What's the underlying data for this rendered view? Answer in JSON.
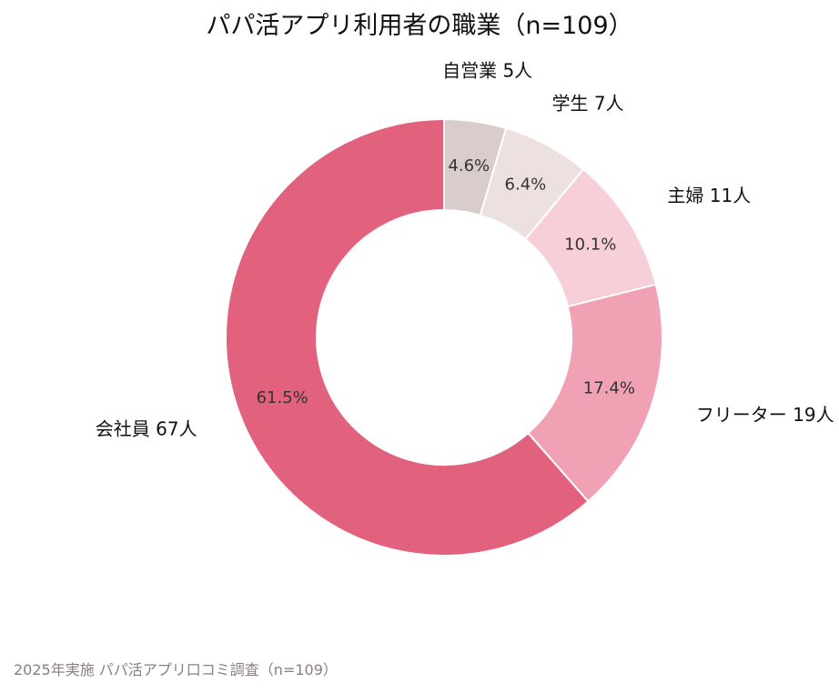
{
  "chart_data": {
    "type": "pie",
    "subtype": "donut",
    "title": "パパ活アプリ利用者の職業（n=109）",
    "total": 109,
    "slices": [
      {
        "label": "自営業",
        "count": 5,
        "count_label": "5人",
        "percent_label": "4.6%",
        "color": "#d9cdcc"
      },
      {
        "label": "学生",
        "count": 7,
        "count_label": "7人",
        "percent_label": "6.4%",
        "color": "#ede1df"
      },
      {
        "label": "主婦",
        "count": 11,
        "count_label": "11人",
        "percent_label": "10.1%",
        "color": "#f7cfd8"
      },
      {
        "label": "フリーター",
        "count": 19,
        "count_label": "19人",
        "percent_label": "17.4%",
        "color": "#f0a1b4"
      },
      {
        "label": "会社員",
        "count": 67,
        "count_label": "67人",
        "percent_label": "61.5%",
        "color": "#e2617d"
      }
    ],
    "start": "top",
    "direction": "clockwise"
  },
  "footnote": "2025年実施 パパ活アプリ口コミ調査（n=109）"
}
